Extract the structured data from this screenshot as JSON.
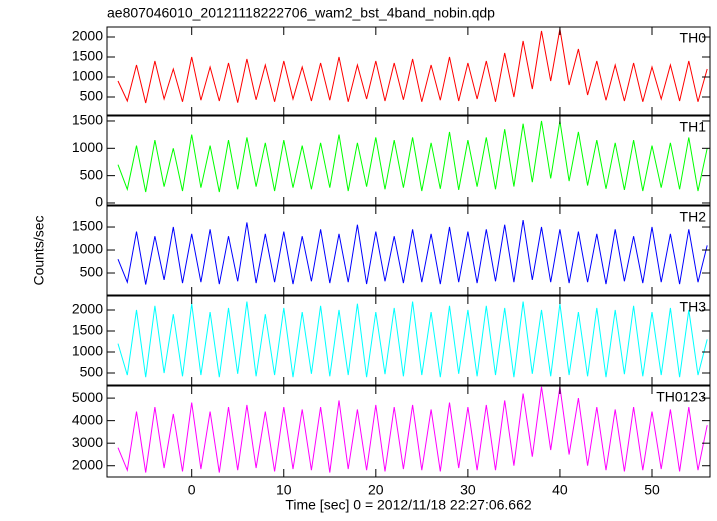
{
  "chart_data": [
    {
      "type": "line",
      "title": "ae807046010_20121118222706_wam2_bst_4band_nobin.qdp",
      "x": [
        -8,
        -7,
        -6,
        -5,
        -4,
        -3,
        -2,
        -1,
        0,
        1,
        2,
        3,
        4,
        5,
        6,
        7,
        8,
        9,
        10,
        11,
        12,
        13,
        14,
        15,
        16,
        17,
        18,
        19,
        20,
        21,
        22,
        23,
        24,
        25,
        26,
        27,
        28,
        29,
        30,
        31,
        32,
        33,
        34,
        35,
        36,
        37,
        38,
        39,
        40,
        41,
        42,
        43,
        44,
        45,
        46,
        47,
        48,
        49,
        50,
        51,
        52,
        53,
        54,
        55,
        56
      ],
      "series": [
        {
          "name": "TH0",
          "color": "#ff0000",
          "values": [
            900,
            400,
            1300,
            350,
            1400,
            450,
            1200,
            380,
            1500,
            420,
            1250,
            400,
            1350,
            360,
            1450,
            430,
            1300,
            380,
            1400,
            450,
            1250,
            400,
            1350,
            420,
            1500,
            380,
            1300,
            450,
            1400,
            400,
            1350,
            430,
            1450,
            380,
            1300,
            420,
            1500,
            400,
            1350,
            450,
            1400,
            380,
            1600,
            500,
            1900,
            700,
            2150,
            900,
            2200,
            800,
            1700,
            550,
            1400,
            420,
            1300,
            400,
            1350,
            380,
            1250,
            450,
            1300,
            400,
            1400,
            380,
            1200
          ]
        }
      ],
      "ylim": [
        50,
        2250
      ],
      "yticks": [
        500,
        1000,
        1500,
        2000
      ]
    },
    {
      "type": "line",
      "x": [
        -8,
        -7,
        -6,
        -5,
        -4,
        -3,
        -2,
        -1,
        0,
        1,
        2,
        3,
        4,
        5,
        6,
        7,
        8,
        9,
        10,
        11,
        12,
        13,
        14,
        15,
        16,
        17,
        18,
        19,
        20,
        21,
        22,
        23,
        24,
        25,
        26,
        27,
        28,
        29,
        30,
        31,
        32,
        33,
        34,
        35,
        36,
        37,
        38,
        39,
        40,
        41,
        42,
        43,
        44,
        45,
        46,
        47,
        48,
        49,
        50,
        51,
        52,
        53,
        54,
        55,
        56
      ],
      "series": [
        {
          "name": "TH1",
          "color": "#00ff00",
          "values": [
            700,
            250,
            1050,
            200,
            1150,
            300,
            1000,
            220,
            1250,
            280,
            1050,
            200,
            1150,
            250,
            1200,
            300,
            1100,
            220,
            1150,
            280,
            1050,
            250,
            1100,
            280,
            1250,
            220,
            1100,
            300,
            1200,
            250,
            1150,
            280,
            1200,
            220,
            1100,
            260,
            1300,
            240,
            1150,
            300,
            1200,
            250,
            1350,
            300,
            1450,
            380,
            1500,
            450,
            1500,
            400,
            1300,
            320,
            1150,
            260,
            1100,
            240,
            1150,
            220,
            1050,
            280,
            1100,
            250,
            1200,
            220,
            1000
          ]
        }
      ],
      "ylim": [
        -37,
        1591
      ],
      "yticks": [
        0,
        500,
        1000,
        1500
      ]
    },
    {
      "type": "line",
      "ylabel": "Counts/sec",
      "x": [
        -8,
        -7,
        -6,
        -5,
        -4,
        -3,
        -2,
        -1,
        0,
        1,
        2,
        3,
        4,
        5,
        6,
        7,
        8,
        9,
        10,
        11,
        12,
        13,
        14,
        15,
        16,
        17,
        18,
        19,
        20,
        21,
        22,
        23,
        24,
        25,
        26,
        27,
        28,
        29,
        30,
        31,
        32,
        33,
        34,
        35,
        36,
        37,
        38,
        39,
        40,
        41,
        42,
        43,
        44,
        45,
        46,
        47,
        48,
        49,
        50,
        51,
        52,
        53,
        54,
        55,
        56
      ],
      "series": [
        {
          "name": "TH2",
          "color": "#0000ff",
          "values": [
            800,
            300,
            1400,
            250,
            1300,
            350,
            1500,
            280,
            1350,
            300,
            1450,
            260,
            1300,
            320,
            1600,
            280,
            1350,
            300,
            1400,
            260,
            1300,
            320,
            1450,
            280,
            1350,
            300,
            1550,
            260,
            1400,
            320,
            1300,
            280,
            1450,
            300,
            1350,
            260,
            1500,
            300,
            1400,
            280,
            1450,
            320,
            1550,
            300,
            1650,
            350,
            1500,
            300,
            1450,
            280,
            1400,
            300,
            1350,
            260,
            1450,
            320,
            1300,
            280,
            1500,
            300,
            1350,
            260,
            1450,
            300,
            1100
          ]
        }
      ],
      "ylim": [
        22,
        1957
      ],
      "yticks": [
        500,
        1000,
        1500
      ]
    },
    {
      "type": "line",
      "x": [
        -8,
        -7,
        -6,
        -5,
        -4,
        -3,
        -2,
        -1,
        0,
        1,
        2,
        3,
        4,
        5,
        6,
        7,
        8,
        9,
        10,
        11,
        12,
        13,
        14,
        15,
        16,
        17,
        18,
        19,
        20,
        21,
        22,
        23,
        24,
        25,
        26,
        27,
        28,
        29,
        30,
        31,
        32,
        33,
        34,
        35,
        36,
        37,
        38,
        39,
        40,
        41,
        42,
        43,
        44,
        45,
        46,
        47,
        48,
        49,
        50,
        51,
        52,
        53,
        54,
        55,
        56
      ],
      "series": [
        {
          "name": "TH3",
          "color": "#00ffff",
          "values": [
            1200,
            450,
            2000,
            400,
            2100,
            500,
            1900,
            420,
            2150,
            450,
            1950,
            400,
            2050,
            480,
            2200,
            420,
            1900,
            450,
            2050,
            400,
            1950,
            480,
            2100,
            420,
            2000,
            450,
            2150,
            400,
            1950,
            470,
            2050,
            420,
            2200,
            450,
            1950,
            400,
            2100,
            480,
            2000,
            420,
            2100,
            450,
            2050,
            400,
            2200,
            480,
            2000,
            420,
            2150,
            450,
            1950,
            420,
            2050,
            400,
            2000,
            470,
            2100,
            420,
            1950,
            450,
            2050,
            400,
            2000,
            450,
            1300
          ]
        }
      ],
      "ylim": [
        214,
        2333
      ],
      "yticks": [
        500,
        1000,
        1500,
        2000
      ]
    },
    {
      "type": "line",
      "xlabel": "Time [sec] 0 = 2012/11/18 22:27:06.662",
      "x": [
        -8,
        -7,
        -6,
        -5,
        -4,
        -3,
        -2,
        -1,
        0,
        1,
        2,
        3,
        4,
        5,
        6,
        7,
        8,
        9,
        10,
        11,
        12,
        13,
        14,
        15,
        16,
        17,
        18,
        19,
        20,
        21,
        22,
        23,
        24,
        25,
        26,
        27,
        28,
        29,
        30,
        31,
        32,
        33,
        34,
        35,
        36,
        37,
        38,
        39,
        40,
        41,
        42,
        43,
        44,
        45,
        46,
        47,
        48,
        49,
        50,
        51,
        52,
        53,
        54,
        55,
        56
      ],
      "series": [
        {
          "name": "TH0123",
          "color": "#ff00ff",
          "values": [
            2800,
            1800,
            4400,
            1700,
            4600,
            1900,
            4300,
            1750,
            4800,
            1850,
            4400,
            1700,
            4600,
            1800,
            4700,
            1900,
            4400,
            1750,
            4600,
            1850,
            4500,
            1800,
            4600,
            1700,
            4900,
            1850,
            4500,
            1800,
            4700,
            1750,
            4600,
            1850,
            4700,
            1800,
            4500,
            1750,
            4800,
            1900,
            4600,
            1800,
            4700,
            1800,
            4900,
            2000,
            5200,
            2400,
            5500,
            2700,
            5500,
            2500,
            5000,
            2000,
            4600,
            1800,
            4500,
            1750,
            4600,
            1800,
            4400,
            1850,
            4500,
            1750,
            4600,
            1800,
            3800
          ]
        }
      ],
      "ylim": [
        1500,
        5537
      ],
      "yticks": [
        2000,
        3000,
        4000,
        5000
      ],
      "xlim": [
        -9.2,
        56.3
      ],
      "xticks": [
        0,
        10,
        20,
        30,
        40,
        50
      ]
    }
  ]
}
